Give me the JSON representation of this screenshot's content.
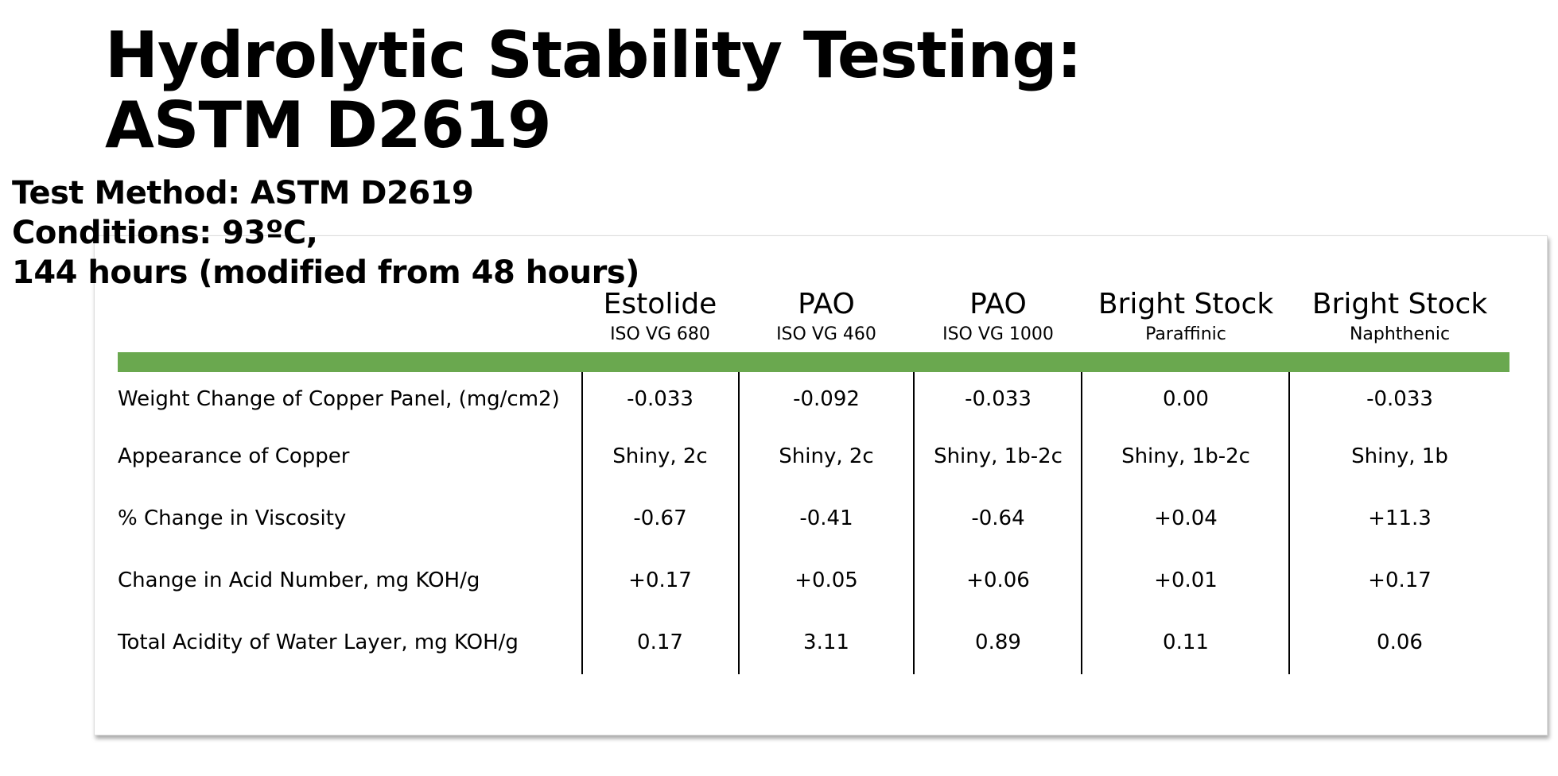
{
  "header": {
    "title": [
      "Hydrolytic Stability Testing:",
      "ASTM D2619"
    ]
  },
  "test_info": [
    "Test Method: ASTM D2619",
    "Conditions: 93ºC,",
    "144 hours (modified from 48 hours)"
  ],
  "table": {
    "columns": [
      {
        "name": "Estolide",
        "sub": "ISO VG 680"
      },
      {
        "name": "PAO",
        "sub": "ISO VG 460"
      },
      {
        "name": "PAO",
        "sub": "ISO VG 1000"
      },
      {
        "name": "Bright Stock",
        "sub": "Paraffinic"
      },
      {
        "name": "Bright Stock",
        "sub": "Naphthenic"
      }
    ],
    "rows": [
      {
        "label": "Weight Change of Copper Panel, (mg/cm2)",
        "values": [
          "-0.033",
          "-0.092",
          "-0.033",
          "0.00",
          "-0.033"
        ]
      },
      {
        "label": "Appearance of Copper",
        "values": [
          "Shiny, 2c",
          "Shiny, 2c",
          "Shiny, 1b-2c",
          "Shiny, 1b-2c",
          "Shiny, 1b"
        ]
      },
      {
        "label": "% Change in Viscosity",
        "values": [
          "-0.67",
          "-0.41",
          "-0.64",
          "+0.04",
          "+11.3"
        ]
      },
      {
        "label": "Change in Acid Number, mg KOH/g",
        "values": [
          "+0.17",
          "+0.05",
          "+0.06",
          "+0.01",
          "+0.17"
        ]
      },
      {
        "label": "Total Acidity of Water Layer, mg KOH/g",
        "values": [
          "0.17",
          "3.11",
          "0.89",
          "0.11",
          "0.06"
        ]
      }
    ]
  }
}
